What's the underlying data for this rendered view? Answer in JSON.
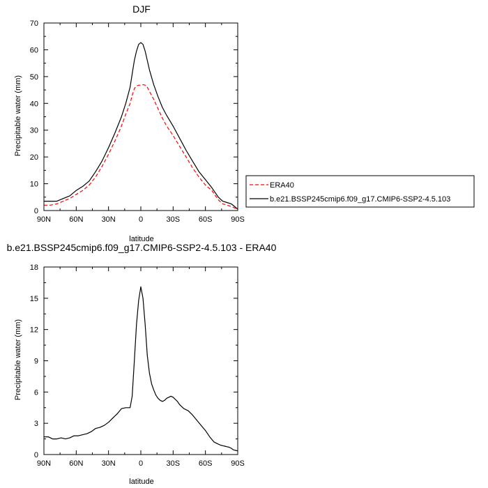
{
  "chart_data": [
    {
      "type": "line",
      "title": "DJF",
      "xlabel": "latitude",
      "ylabel": "Precipitable water (mm)",
      "xlim": [
        90,
        -90
      ],
      "ylim": [
        0,
        70
      ],
      "xticks": [
        90,
        60,
        30,
        0,
        -30,
        -60,
        -90
      ],
      "xtick_labels": [
        "90N",
        "60N",
        "30N",
        "0",
        "30S",
        "60S",
        "90S"
      ],
      "yticks": [
        0,
        10,
        20,
        30,
        40,
        50,
        60,
        70
      ],
      "ytick_labels": [
        "0",
        "10",
        "20",
        "30",
        "40",
        "50",
        "60",
        "70"
      ],
      "legend": "right",
      "series": [
        {
          "name": "ERA40",
          "color": "#ff0000",
          "dash": "dashed",
          "x": [
            90,
            84,
            78,
            72,
            66,
            60,
            54,
            48,
            42,
            36,
            30,
            24,
            18,
            14,
            10,
            8,
            6,
            4,
            2,
            0,
            -2,
            -4,
            -6,
            -8,
            -12,
            -16,
            -20,
            -24,
            -30,
            -36,
            -42,
            -48,
            -54,
            -60,
            -66,
            -72,
            -76,
            -80,
            -84,
            -88,
            -90
          ],
          "y": [
            2.0,
            2.0,
            2.5,
            3.5,
            4.5,
            6.0,
            7.5,
            9.5,
            12.5,
            16.5,
            21.0,
            26.0,
            31.5,
            36.0,
            40.0,
            43.0,
            45.5,
            46.5,
            46.8,
            46.8,
            47.0,
            46.8,
            46.0,
            44.5,
            41.5,
            38.0,
            34.5,
            31.5,
            28.0,
            24.0,
            20.0,
            16.0,
            12.5,
            9.5,
            7.5,
            4.0,
            2.5,
            2.0,
            1.5,
            0.8,
            0.3
          ]
        },
        {
          "name": "b.e21.BSSP245cmip6.f09_g17.CMIP6-SSP2-4.5.103",
          "color": "#000000",
          "dash": "solid",
          "x": [
            90,
            84,
            78,
            72,
            66,
            60,
            54,
            48,
            42,
            36,
            30,
            24,
            18,
            14,
            10,
            8,
            6,
            4,
            2,
            0,
            -2,
            -4,
            -6,
            -8,
            -12,
            -16,
            -20,
            -24,
            -30,
            -36,
            -42,
            -48,
            -54,
            -60,
            -66,
            -72,
            -76,
            -80,
            -84,
            -88,
            -90
          ],
          "y": [
            3.5,
            3.5,
            3.5,
            4.5,
            5.5,
            7.5,
            9.0,
            11.0,
            14.5,
            18.5,
            23.5,
            29.0,
            35.0,
            40.0,
            46.0,
            51.0,
            56.0,
            59.5,
            62.0,
            62.7,
            62.0,
            59.5,
            56.0,
            52.5,
            47.0,
            42.5,
            38.5,
            35.5,
            31.5,
            27.0,
            22.5,
            18.5,
            14.5,
            11.5,
            8.5,
            5.0,
            3.5,
            3.0,
            2.5,
            1.2,
            0.5
          ]
        }
      ]
    },
    {
      "type": "line",
      "title": "b.e21.BSSP245cmip6.f09_g17.CMIP6-SSP2-4.5.103 - ERA40",
      "xlabel": "latitude",
      "ylabel": "Precipitable water (mm)",
      "xlim": [
        90,
        -90
      ],
      "ylim": [
        0,
        18
      ],
      "xticks": [
        90,
        60,
        30,
        0,
        -30,
        -60,
        -90
      ],
      "xtick_labels": [
        "90N",
        "60N",
        "30N",
        "0",
        "30S",
        "60S",
        "90S"
      ],
      "yticks": [
        0,
        3,
        6,
        9,
        12,
        15,
        18
      ],
      "ytick_labels": [
        "0",
        "3",
        "6",
        "9",
        "12",
        "15",
        "18"
      ],
      "series": [
        {
          "color": "#000000",
          "dash": "solid",
          "x": [
            90,
            86,
            82,
            78,
            74,
            70,
            66,
            62,
            58,
            54,
            50,
            46,
            42,
            38,
            34,
            30,
            26,
            22,
            18,
            14,
            10,
            8,
            6,
            4,
            2,
            0,
            -2,
            -4,
            -6,
            -8,
            -10,
            -12,
            -14,
            -16,
            -18,
            -20,
            -22,
            -24,
            -26,
            -28,
            -30,
            -32,
            -34,
            -36,
            -38,
            -40,
            -44,
            -48,
            -52,
            -56,
            -60,
            -64,
            -68,
            -72,
            -74,
            -76,
            -78,
            -80,
            -82,
            -84,
            -86,
            -88,
            -90
          ],
          "y": [
            1.7,
            1.7,
            1.5,
            1.5,
            1.6,
            1.5,
            1.6,
            1.8,
            1.8,
            1.9,
            2.0,
            2.2,
            2.5,
            2.6,
            2.8,
            3.1,
            3.5,
            3.9,
            4.4,
            4.5,
            4.5,
            5.6,
            9.0,
            12.5,
            14.8,
            16.1,
            15.0,
            12.5,
            9.5,
            7.8,
            6.8,
            6.2,
            5.7,
            5.4,
            5.2,
            5.1,
            5.2,
            5.4,
            5.5,
            5.6,
            5.5,
            5.3,
            5.1,
            4.8,
            4.6,
            4.4,
            4.2,
            3.8,
            3.3,
            2.8,
            2.3,
            1.7,
            1.2,
            1.0,
            0.9,
            0.85,
            0.8,
            0.75,
            0.7,
            0.6,
            0.45,
            0.4,
            0.35
          ]
        }
      ]
    }
  ]
}
